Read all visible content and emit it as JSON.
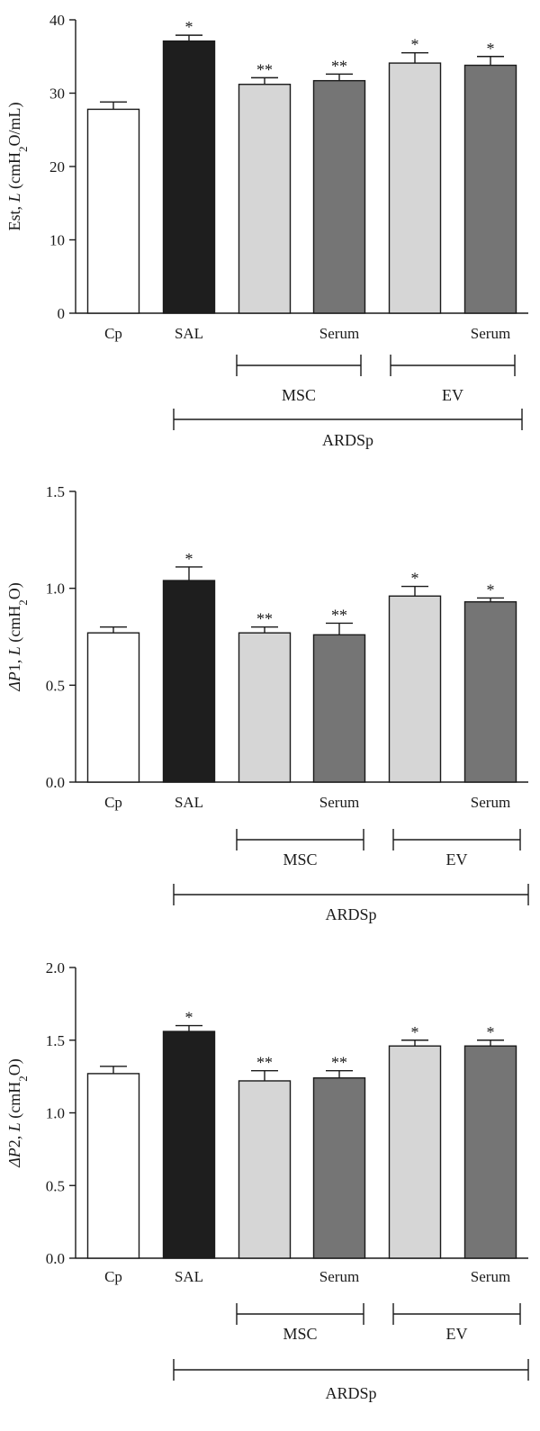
{
  "colors": {
    "bar_fill": [
      "#ffffff",
      "#1e1e1e",
      "#d6d6d6",
      "#757575",
      "#d6d6d6",
      "#757575"
    ],
    "bar_stroke": "#1a1a1a",
    "axis": "#1a1a1a",
    "background": "#ffffff"
  },
  "groups": {
    "msc": "MSC",
    "ev": "EV",
    "ardsp": "ARDSp"
  },
  "chart_data": [
    {
      "type": "bar",
      "ylabel_parts": [
        {
          "text": "Est, "
        },
        {
          "text": "L",
          "style": "italic"
        },
        {
          "text": " (cmH"
        },
        {
          "text": "2",
          "style": "sub"
        },
        {
          "text": "O/mL)"
        }
      ],
      "categories": [
        "Cp",
        "SAL",
        "",
        "Serum",
        "",
        "Serum"
      ],
      "values": [
        27.8,
        37.1,
        31.2,
        31.7,
        34.1,
        33.8
      ],
      "errors": [
        1.0,
        0.8,
        0.9,
        0.9,
        1.4,
        1.2
      ],
      "annotations": [
        "",
        "*",
        "**",
        "**",
        "*",
        "*"
      ],
      "ylim": [
        0,
        40
      ],
      "yticks": [
        "0",
        "10",
        "20",
        "30",
        "40"
      ],
      "ytick_values": [
        0,
        10,
        20,
        30,
        40
      ]
    },
    {
      "type": "bar",
      "ylabel_parts": [
        {
          "text": "ΔP",
          "style": "italic"
        },
        {
          "text": "1, "
        },
        {
          "text": "L",
          "style": "italic"
        },
        {
          "text": " (cmH"
        },
        {
          "text": "2",
          "style": "sub"
        },
        {
          "text": "O)"
        }
      ],
      "categories": [
        "Cp",
        "SAL",
        "",
        "Serum",
        "",
        "Serum"
      ],
      "values": [
        0.77,
        1.04,
        0.77,
        0.76,
        0.96,
        0.93
      ],
      "errors": [
        0.03,
        0.07,
        0.03,
        0.06,
        0.05,
        0.02
      ],
      "annotations": [
        "",
        "*",
        "**",
        "**",
        "*",
        "*"
      ],
      "ylim": [
        0,
        1.5
      ],
      "yticks": [
        "0.0",
        "0.5",
        "1.0",
        "1.5"
      ],
      "ytick_values": [
        0,
        0.5,
        1.0,
        1.5
      ]
    },
    {
      "type": "bar",
      "ylabel_parts": [
        {
          "text": "ΔP",
          "style": "italic"
        },
        {
          "text": "2, "
        },
        {
          "text": "L",
          "style": "italic"
        },
        {
          "text": " (cmH"
        },
        {
          "text": "2",
          "style": "sub"
        },
        {
          "text": "O)"
        }
      ],
      "categories": [
        "Cp",
        "SAL",
        "",
        "Serum",
        "",
        "Serum"
      ],
      "values": [
        1.27,
        1.56,
        1.22,
        1.24,
        1.46,
        1.46
      ],
      "errors": [
        0.05,
        0.04,
        0.07,
        0.05,
        0.04,
        0.04
      ],
      "annotations": [
        "",
        "*",
        "**",
        "**",
        "*",
        "*"
      ],
      "ylim": [
        0,
        2.0
      ],
      "yticks": [
        "0.0",
        "0.5",
        "1.0",
        "1.5",
        "2.0"
      ],
      "ytick_values": [
        0,
        0.5,
        1.0,
        1.5,
        2.0
      ]
    }
  ]
}
